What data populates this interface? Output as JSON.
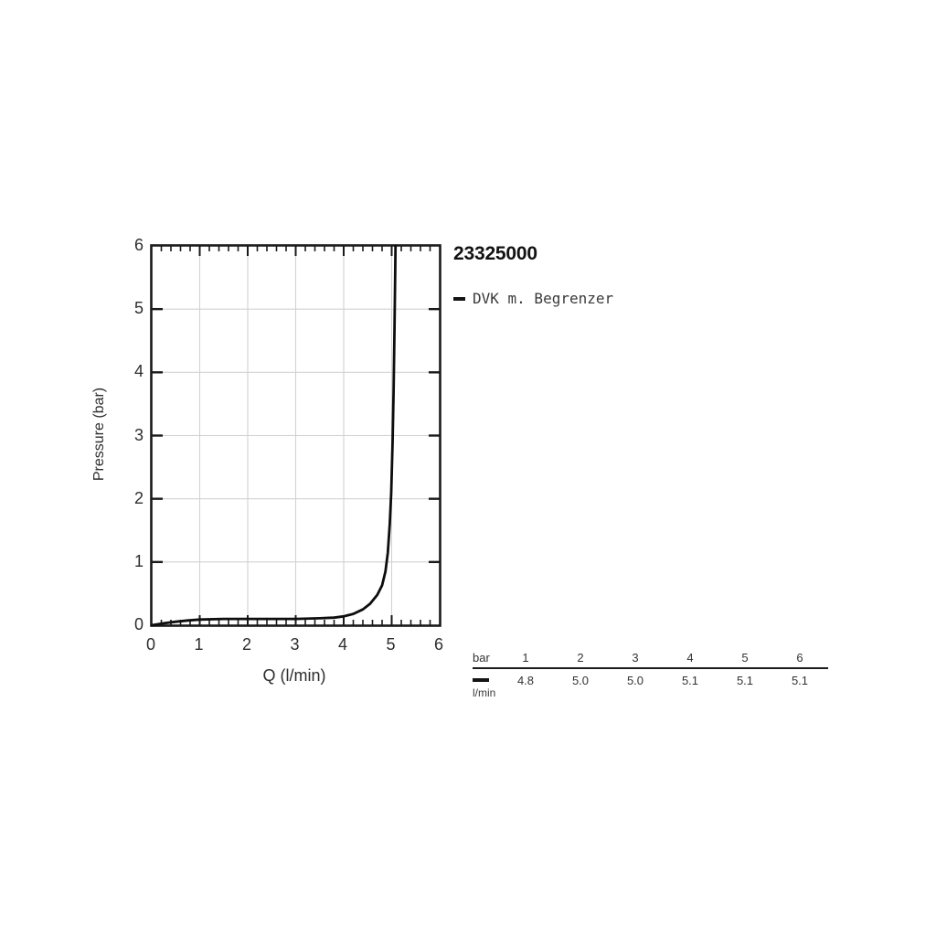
{
  "page": {
    "background": "#ffffff"
  },
  "header": {
    "title": "23325000"
  },
  "legend": {
    "label": "DVK m. Begrenzer",
    "swatch_color": "#141414"
  },
  "chart_data": {
    "type": "line",
    "title": "23325000",
    "xlabel": "Q (l/min)",
    "ylabel": "Pressure (bar)",
    "xlim": [
      0,
      6
    ],
    "ylim": [
      0,
      6
    ],
    "x_ticks": [
      0,
      1,
      2,
      3,
      4,
      5,
      6
    ],
    "y_ticks": [
      0,
      1,
      2,
      3,
      4,
      5,
      6
    ],
    "x_minor_step": 0.2,
    "grid": true,
    "legend_position": "right-top",
    "series": [
      {
        "name": "DVK m. Begrenzer",
        "color": "#0d0d0d",
        "points": [
          [
            0,
            0
          ],
          [
            0.25,
            0.03
          ],
          [
            0.5,
            0.055
          ],
          [
            0.75,
            0.075
          ],
          [
            1,
            0.09
          ],
          [
            1.5,
            0.1
          ],
          [
            2,
            0.1
          ],
          [
            2.5,
            0.1
          ],
          [
            3,
            0.1
          ],
          [
            3.5,
            0.11
          ],
          [
            3.8,
            0.12
          ],
          [
            4.0,
            0.14
          ],
          [
            4.2,
            0.18
          ],
          [
            4.4,
            0.25
          ],
          [
            4.55,
            0.34
          ],
          [
            4.7,
            0.48
          ],
          [
            4.8,
            0.63
          ],
          [
            4.87,
            0.85
          ],
          [
            4.92,
            1.15
          ],
          [
            4.96,
            1.6
          ],
          [
            4.99,
            2.1
          ],
          [
            5.02,
            2.9
          ],
          [
            5.04,
            3.7
          ],
          [
            5.06,
            4.7
          ],
          [
            5.07,
            5.4
          ],
          [
            5.08,
            6
          ]
        ]
      }
    ]
  },
  "flow_table": {
    "header_label": "bar",
    "pressures": [
      "1",
      "2",
      "3",
      "4",
      "5",
      "6"
    ],
    "row_unit": "l/min",
    "flows": [
      "4.8",
      "5.0",
      "5.0",
      "5.1",
      "5.1",
      "5.1"
    ]
  },
  "colors": {
    "axis": "#1a1a1a",
    "grid": "#d2d2d2",
    "curve": "#0d0d0d",
    "text": "#2d2d2d"
  }
}
